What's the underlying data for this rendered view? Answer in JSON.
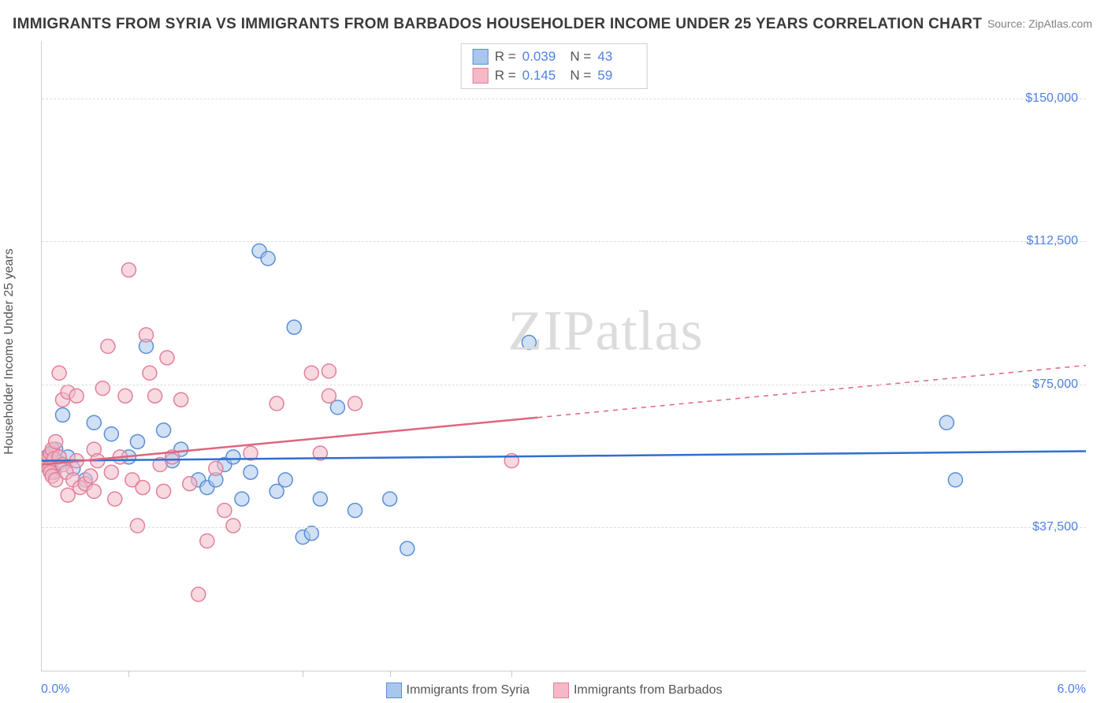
{
  "title": "IMMIGRANTS FROM SYRIA VS IMMIGRANTS FROM BARBADOS HOUSEHOLDER INCOME UNDER 25 YEARS CORRELATION CHART",
  "source": "Source: ZipAtlas.com",
  "watermark": "ZIPatlas",
  "ylabel": "Householder Income Under 25 years",
  "chart": {
    "type": "scatter",
    "xlim": [
      0.0,
      6.0
    ],
    "ylim": [
      0,
      165000
    ],
    "x_tick_positions": [
      0.5,
      1.5,
      2.0,
      2.7
    ],
    "y_gridlines": [
      37500,
      75000,
      112500,
      150000
    ],
    "y_tick_labels": [
      "$37,500",
      "$75,000",
      "$112,500",
      "$150,000"
    ],
    "x_min_label": "0.0%",
    "x_max_label": "6.0%",
    "background_color": "#ffffff",
    "grid_color": "#dcdcdc",
    "axis_color": "#d0d0d0",
    "marker_radius": 9,
    "marker_stroke_width": 1.5,
    "trend_line_width": 2.5,
    "series": [
      {
        "name": "Immigrants from Syria",
        "fill": "#a9c6ed",
        "stroke": "#5b8fd6",
        "fill_opacity": 0.55,
        "trend_color": "#2f6fd0",
        "trend_y_start": 55000,
        "trend_y_end": 57500,
        "trend_dash_from_x": 6.0,
        "R": "0.039",
        "N": "43",
        "points": [
          [
            0.02,
            55000
          ],
          [
            0.03,
            56000
          ],
          [
            0.04,
            54000
          ],
          [
            0.05,
            53500
          ],
          [
            0.05,
            55500
          ],
          [
            0.06,
            57000
          ],
          [
            0.07,
            52000
          ],
          [
            0.08,
            58000
          ],
          [
            0.1,
            54500
          ],
          [
            0.12,
            67000
          ],
          [
            0.15,
            56000
          ],
          [
            0.18,
            53000
          ],
          [
            0.25,
            50000
          ],
          [
            0.3,
            65000
          ],
          [
            0.4,
            62000
          ],
          [
            0.5,
            56000
          ],
          [
            0.55,
            60000
          ],
          [
            0.6,
            85000
          ],
          [
            0.7,
            63000
          ],
          [
            0.75,
            55000
          ],
          [
            0.8,
            58000
          ],
          [
            0.9,
            50000
          ],
          [
            0.95,
            48000
          ],
          [
            1.0,
            50000
          ],
          [
            1.05,
            54000
          ],
          [
            1.1,
            56000
          ],
          [
            1.15,
            45000
          ],
          [
            1.2,
            52000
          ],
          [
            1.25,
            110000
          ],
          [
            1.3,
            108000
          ],
          [
            1.35,
            47000
          ],
          [
            1.4,
            50000
          ],
          [
            1.45,
            90000
          ],
          [
            1.5,
            35000
          ],
          [
            1.55,
            36000
          ],
          [
            1.6,
            45000
          ],
          [
            1.7,
            69000
          ],
          [
            1.8,
            42000
          ],
          [
            2.0,
            45000
          ],
          [
            2.1,
            32000
          ],
          [
            2.8,
            86000
          ],
          [
            5.2,
            65000
          ],
          [
            5.25,
            50000
          ]
        ]
      },
      {
        "name": "Immigrants from Barbados",
        "fill": "#f3b9c7",
        "stroke": "#e37f9a",
        "fill_opacity": 0.55,
        "trend_color": "#e0657f",
        "trend_y_start": 54000,
        "trend_y_end": 80000,
        "trend_dash_from_x": 2.85,
        "R": "0.145",
        "N": "59",
        "points": [
          [
            0.02,
            54000
          ],
          [
            0.03,
            55000
          ],
          [
            0.04,
            56000
          ],
          [
            0.04,
            53000
          ],
          [
            0.05,
            52000
          ],
          [
            0.05,
            57000
          ],
          [
            0.06,
            58000
          ],
          [
            0.06,
            51000
          ],
          [
            0.07,
            55500
          ],
          [
            0.08,
            60000
          ],
          [
            0.08,
            50000
          ],
          [
            0.1,
            78000
          ],
          [
            0.1,
            56000
          ],
          [
            0.12,
            71000
          ],
          [
            0.12,
            54000
          ],
          [
            0.14,
            52000
          ],
          [
            0.15,
            46000
          ],
          [
            0.15,
            73000
          ],
          [
            0.18,
            50000
          ],
          [
            0.2,
            72000
          ],
          [
            0.2,
            55000
          ],
          [
            0.22,
            48000
          ],
          [
            0.25,
            49000
          ],
          [
            0.28,
            51000
          ],
          [
            0.3,
            47000
          ],
          [
            0.3,
            58000
          ],
          [
            0.32,
            55000
          ],
          [
            0.35,
            74000
          ],
          [
            0.38,
            85000
          ],
          [
            0.4,
            52000
          ],
          [
            0.42,
            45000
          ],
          [
            0.45,
            56000
          ],
          [
            0.48,
            72000
          ],
          [
            0.5,
            105000
          ],
          [
            0.52,
            50000
          ],
          [
            0.55,
            38000
          ],
          [
            0.58,
            48000
          ],
          [
            0.6,
            88000
          ],
          [
            0.62,
            78000
          ],
          [
            0.65,
            72000
          ],
          [
            0.68,
            54000
          ],
          [
            0.7,
            47000
          ],
          [
            0.72,
            82000
          ],
          [
            0.75,
            56000
          ],
          [
            0.8,
            71000
          ],
          [
            0.85,
            49000
          ],
          [
            0.9,
            20000
          ],
          [
            0.95,
            34000
          ],
          [
            1.0,
            53000
          ],
          [
            1.05,
            42000
          ],
          [
            1.1,
            38000
          ],
          [
            1.2,
            57000
          ],
          [
            1.35,
            70000
          ],
          [
            1.55,
            78000
          ],
          [
            1.6,
            57000
          ],
          [
            1.65,
            72000
          ],
          [
            1.65,
            78500
          ],
          [
            1.8,
            70000
          ],
          [
            2.7,
            55000
          ]
        ]
      }
    ]
  },
  "stats_box": {
    "rows": [
      {
        "color_fill": "#a9c6ed",
        "color_stroke": "#5b8fd6",
        "R": "0.039",
        "N": "43"
      },
      {
        "color_fill": "#f3b9c7",
        "color_stroke": "#e37f9a",
        "R": "0.145",
        "N": "59"
      }
    ]
  },
  "bottom_legend": [
    {
      "color_fill": "#a9c6ed",
      "color_stroke": "#5b8fd6",
      "label": "Immigrants from Syria"
    },
    {
      "color_fill": "#f3b9c7",
      "color_stroke": "#e37f9a",
      "label": "Immigrants from Barbados"
    }
  ],
  "colors": {
    "tick_label": "#4f81e5",
    "text": "#555555",
    "title": "#3a3a3a"
  }
}
